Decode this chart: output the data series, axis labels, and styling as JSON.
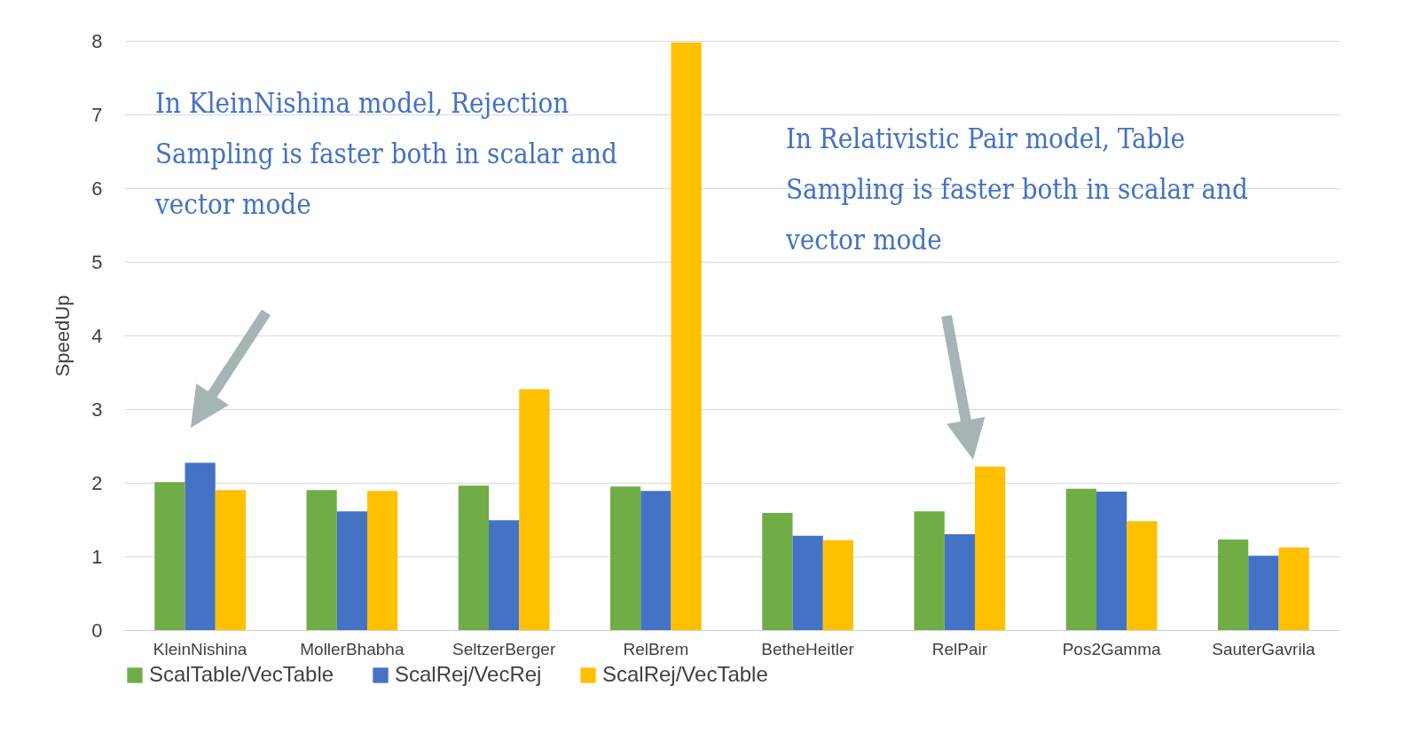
{
  "chart_data": {
    "type": "bar",
    "ylabel": "SpeedUp",
    "categories": [
      "KleinNishina",
      "MollerBhabha",
      "SeltzerBerger",
      "RelBrem",
      "BetheHeitler",
      "RelPair",
      "Pos2Gamma",
      "SauterGavrila"
    ],
    "series": [
      {
        "name": "ScalTable/VecTable",
        "color": "#70ad47",
        "values": [
          2.01,
          1.9,
          1.96,
          1.95,
          1.59,
          1.61,
          1.92,
          1.23
        ]
      },
      {
        "name": "ScalRej/VecRej",
        "color": "#4472c4",
        "values": [
          2.27,
          1.61,
          1.49,
          1.89,
          1.28,
          1.3,
          1.88,
          1.01
        ]
      },
      {
        "name": "ScalRej/VecTable",
        "color": "#ffc000",
        "values": [
          1.9,
          1.89,
          3.27,
          7.98,
          1.22,
          2.22,
          1.48,
          1.12
        ]
      }
    ],
    "ylim": [
      0,
      8
    ],
    "yticks": [
      0,
      1,
      2,
      3,
      4,
      5,
      6,
      7,
      8
    ],
    "grid": "y",
    "legend": "bottom",
    "annotations": [
      "In KleinNishina model, Rejection Sampling is faster both in scalar and vector mode",
      "In Relativistic Pair model, Table Sampling is faster both in scalar and vector mode"
    ]
  }
}
